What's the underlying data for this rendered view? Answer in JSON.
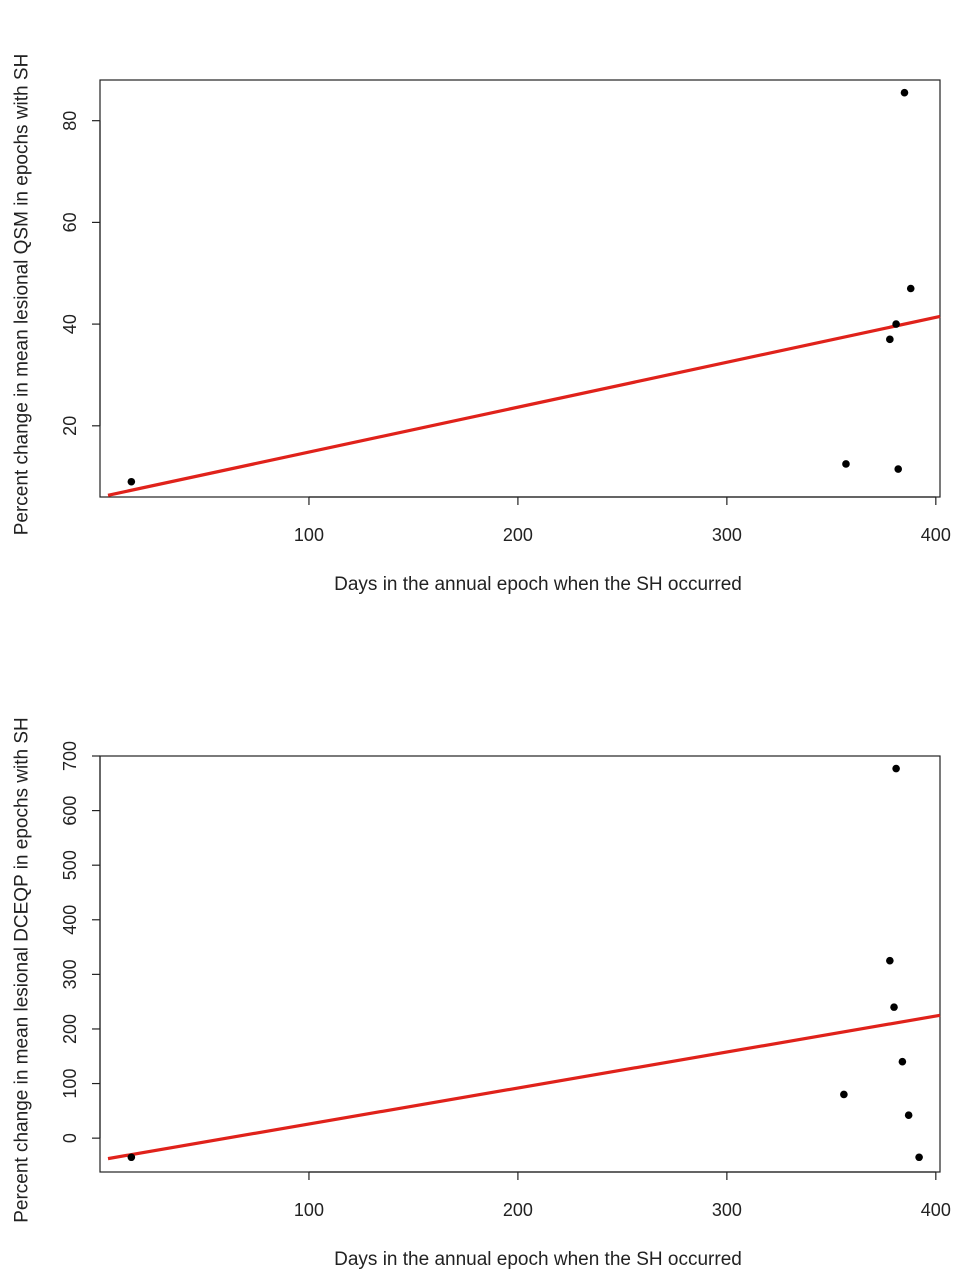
{
  "chart_data": [
    {
      "type": "scatter",
      "title": "",
      "xlabel": "Days in the annual epoch when the SH occurred",
      "ylabel": "Percent change in mean lesional QSM in epochs with SH",
      "xlim": [
        0,
        402
      ],
      "ylim": [
        6,
        88
      ],
      "xticks": [
        "100",
        "200",
        "300",
        "400"
      ],
      "yticks": [
        "20",
        "40",
        "60",
        "80"
      ],
      "grid": false,
      "legend": "none",
      "point_color": "#000000",
      "line_color": "#e0221b",
      "points": [
        {
          "x": 15,
          "y": 9
        },
        {
          "x": 357,
          "y": 12.5
        },
        {
          "x": 378,
          "y": 37
        },
        {
          "x": 381,
          "y": 40
        },
        {
          "x": 382,
          "y": 11.5
        },
        {
          "x": 385,
          "y": 85.5
        },
        {
          "x": 388,
          "y": 47
        }
      ],
      "fit_line": {
        "x": [
          0,
          402
        ],
        "y": [
          6,
          41.5
        ]
      }
    },
    {
      "type": "scatter",
      "title": "",
      "xlabel": "Days in the annual epoch when the SH occurred",
      "ylabel": "Percent change in mean lesional DCEQP in epochs with SH",
      "xlim": [
        0,
        402
      ],
      "ylim": [
        -62,
        700
      ],
      "xticks": [
        "100",
        "200",
        "300",
        "400"
      ],
      "yticks": [
        "0",
        "100",
        "200",
        "300",
        "400",
        "500",
        "600",
        "700"
      ],
      "grid": false,
      "legend": "none",
      "point_color": "#000000",
      "line_color": "#e0221b",
      "points": [
        {
          "x": 15,
          "y": -35
        },
        {
          "x": 356,
          "y": 80
        },
        {
          "x": 378,
          "y": 325
        },
        {
          "x": 380,
          "y": 240
        },
        {
          "x": 381,
          "y": 677
        },
        {
          "x": 384,
          "y": 140
        },
        {
          "x": 387,
          "y": 42
        },
        {
          "x": 392,
          "y": -35
        }
      ],
      "fit_line": {
        "x": [
          0,
          402
        ],
        "y": [
          -40,
          225
        ]
      }
    }
  ]
}
